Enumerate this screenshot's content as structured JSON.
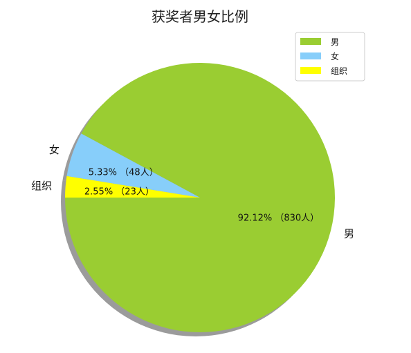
{
  "chart_data": {
    "type": "pie",
    "title": "获奖者男女比例",
    "categories": [
      "男",
      "女",
      "组织"
    ],
    "values": [
      830,
      48,
      23
    ],
    "percent_labels": [
      "92.12%  （830人）",
      "5.33%  （48人）",
      "2.55%  （23人）"
    ],
    "colors": [
      "#9acd32",
      "#87cefa",
      "#ffff00"
    ],
    "shadow": true,
    "legend": {
      "placement": "top-right",
      "entries": [
        "男",
        "女",
        "组织"
      ]
    }
  }
}
